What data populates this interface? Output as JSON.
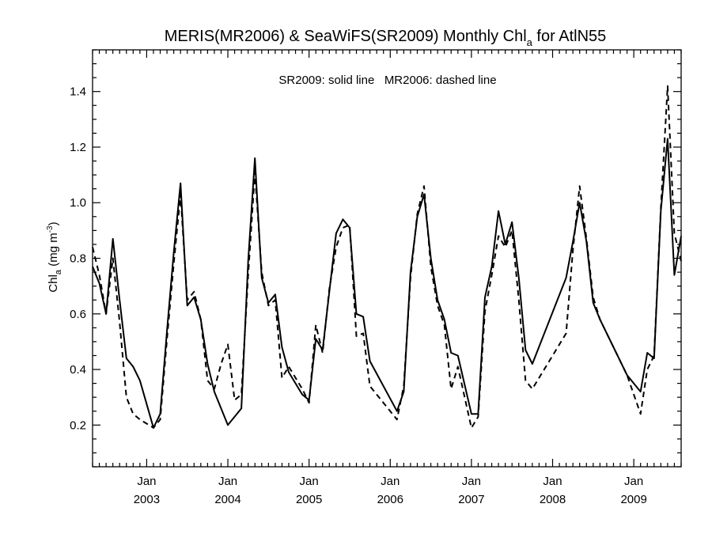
{
  "chart_data": {
    "type": "line",
    "title": "MERIS(MR2006) & SeaWiFS(SR2009) Monthly Chl",
    "title_subscript": "a",
    "title_suffix": " for AtlN55",
    "annotation": "SR2009: solid line   MR2006: dashed line",
    "ylabel": "Chl",
    "ylabel_subscript": "a",
    "ylabel_units": " (mg m",
    "ylabel_units_sup": "-3",
    "ylabel_units_close": ")",
    "ylim": [
      0.05,
      1.55
    ],
    "xlim": [
      "2002-05-01",
      "2009-08-01"
    ],
    "y_ticks": [
      0.2,
      0.4,
      0.6,
      0.8,
      1.0,
      1.2,
      1.4
    ],
    "y_tick_labels": [
      "0.2",
      "0.4",
      "0.6",
      "0.8",
      "1.0",
      "1.2",
      "1.4"
    ],
    "x_ticks": [
      "2003-01-01",
      "2004-01-01",
      "2005-01-01",
      "2006-01-01",
      "2007-01-01",
      "2008-01-01",
      "2009-01-01"
    ],
    "x_tick_month_label": "Jan",
    "x_tick_year_labels": [
      "2003",
      "2004",
      "2005",
      "2006",
      "2007",
      "2008",
      "2009"
    ],
    "grid": false,
    "legend": "none",
    "series": [
      {
        "name": "SR2009",
        "style": "solid",
        "color": "#000000",
        "points": [
          [
            "2002-05-01",
            0.77
          ],
          [
            "2002-06-01",
            0.71
          ],
          [
            "2002-07-01",
            0.6
          ],
          [
            "2002-08-01",
            0.87
          ],
          [
            "2002-09-01",
            0.65
          ],
          [
            "2002-10-01",
            0.44
          ],
          [
            "2002-11-01",
            0.41
          ],
          [
            "2002-12-01",
            0.36
          ],
          [
            "2003-02-01",
            0.19
          ],
          [
            "2003-03-01",
            0.24
          ],
          [
            "2003-04-01",
            0.54
          ],
          [
            "2003-05-01",
            0.82
          ],
          [
            "2003-06-01",
            1.07
          ],
          [
            "2003-07-01",
            0.63
          ],
          [
            "2003-08-01",
            0.66
          ],
          [
            "2003-09-01",
            0.58
          ],
          [
            "2003-10-01",
            0.42
          ],
          [
            "2003-11-01",
            0.32
          ],
          [
            "2004-01-01",
            0.2
          ],
          [
            "2004-03-01",
            0.26
          ],
          [
            "2004-04-01",
            0.79
          ],
          [
            "2004-05-01",
            1.16
          ],
          [
            "2004-06-01",
            0.73
          ],
          [
            "2004-07-01",
            0.64
          ],
          [
            "2004-08-01",
            0.67
          ],
          [
            "2004-09-01",
            0.48
          ],
          [
            "2004-10-01",
            0.39
          ],
          [
            "2004-12-01",
            0.31
          ],
          [
            "2005-01-01",
            0.29
          ],
          [
            "2005-02-01",
            0.51
          ],
          [
            "2005-03-01",
            0.47
          ],
          [
            "2005-04-01",
            0.68
          ],
          [
            "2005-05-01",
            0.89
          ],
          [
            "2005-06-01",
            0.94
          ],
          [
            "2005-07-01",
            0.91
          ],
          [
            "2005-08-01",
            0.6
          ],
          [
            "2005-09-01",
            0.59
          ],
          [
            "2005-10-01",
            0.43
          ],
          [
            "2006-02-01",
            0.25
          ],
          [
            "2006-03-01",
            0.32
          ],
          [
            "2006-04-01",
            0.75
          ],
          [
            "2006-05-01",
            0.95
          ],
          [
            "2006-06-01",
            1.03
          ],
          [
            "2006-07-01",
            0.8
          ],
          [
            "2006-08-01",
            0.65
          ],
          [
            "2006-09-01",
            0.58
          ],
          [
            "2006-10-01",
            0.46
          ],
          [
            "2006-11-01",
            0.45
          ],
          [
            "2007-01-01",
            0.24
          ],
          [
            "2007-02-01",
            0.24
          ],
          [
            "2007-03-01",
            0.66
          ],
          [
            "2007-04-01",
            0.77
          ],
          [
            "2007-05-01",
            0.97
          ],
          [
            "2007-06-01",
            0.85
          ],
          [
            "2007-07-01",
            0.93
          ],
          [
            "2007-08-01",
            0.73
          ],
          [
            "2007-09-01",
            0.47
          ],
          [
            "2007-10-01",
            0.42
          ],
          [
            "2008-03-01",
            0.73
          ],
          [
            "2008-04-01",
            0.86
          ],
          [
            "2008-05-01",
            1.0
          ],
          [
            "2008-06-01",
            0.86
          ],
          [
            "2008-07-01",
            0.64
          ],
          [
            "2008-08-01",
            0.58
          ],
          [
            "2008-12-01",
            0.38
          ],
          [
            "2009-02-01",
            0.32
          ],
          [
            "2009-03-01",
            0.46
          ],
          [
            "2009-04-01",
            0.44
          ],
          [
            "2009-05-01",
            0.97
          ],
          [
            "2009-06-01",
            1.23
          ],
          [
            "2009-07-01",
            0.74
          ],
          [
            "2009-08-01",
            0.88
          ]
        ]
      },
      {
        "name": "MR2006",
        "style": "dashed",
        "color": "#000000",
        "points": [
          [
            "2002-05-01",
            0.84
          ],
          [
            "2002-06-01",
            0.74
          ],
          [
            "2002-07-01",
            0.6
          ],
          [
            "2002-08-01",
            0.8
          ],
          [
            "2002-09-01",
            0.57
          ],
          [
            "2002-10-01",
            0.3
          ],
          [
            "2002-11-01",
            0.24
          ],
          [
            "2002-12-01",
            0.22
          ],
          [
            "2003-02-01",
            0.19
          ],
          [
            "2003-03-01",
            0.22
          ],
          [
            "2003-04-01",
            0.51
          ],
          [
            "2003-05-01",
            0.78
          ],
          [
            "2003-06-01",
            1.03
          ],
          [
            "2003-07-01",
            0.65
          ],
          [
            "2003-08-01",
            0.68
          ],
          [
            "2003-09-01",
            0.58
          ],
          [
            "2003-10-01",
            0.36
          ],
          [
            "2003-11-01",
            0.33
          ],
          [
            "2003-12-01",
            0.42
          ],
          [
            "2004-01-01",
            0.49
          ],
          [
            "2004-02-01",
            0.29
          ],
          [
            "2004-03-01",
            0.31
          ],
          [
            "2004-04-01",
            0.74
          ],
          [
            "2004-05-01",
            1.11
          ],
          [
            "2004-06-01",
            0.75
          ],
          [
            "2004-07-01",
            0.63
          ],
          [
            "2004-08-01",
            0.65
          ],
          [
            "2004-09-01",
            0.37
          ],
          [
            "2004-10-01",
            0.41
          ],
          [
            "2004-12-01",
            0.33
          ],
          [
            "2005-01-01",
            0.28
          ],
          [
            "2005-02-01",
            0.56
          ],
          [
            "2005-03-01",
            0.46
          ],
          [
            "2005-04-01",
            0.69
          ],
          [
            "2005-05-01",
            0.84
          ],
          [
            "2005-06-01",
            0.91
          ],
          [
            "2005-07-01",
            0.92
          ],
          [
            "2005-08-01",
            0.52
          ],
          [
            "2005-09-01",
            0.53
          ],
          [
            "2005-10-01",
            0.34
          ],
          [
            "2006-02-01",
            0.22
          ],
          [
            "2006-03-01",
            0.34
          ],
          [
            "2006-04-01",
            0.73
          ],
          [
            "2006-05-01",
            0.96
          ],
          [
            "2006-06-01",
            1.06
          ],
          [
            "2006-07-01",
            0.77
          ],
          [
            "2006-08-01",
            0.63
          ],
          [
            "2006-09-01",
            0.56
          ],
          [
            "2006-10-01",
            0.33
          ],
          [
            "2006-11-01",
            0.41
          ],
          [
            "2007-01-01",
            0.19
          ],
          [
            "2007-02-01",
            0.23
          ],
          [
            "2007-03-01",
            0.61
          ],
          [
            "2007-04-01",
            0.74
          ],
          [
            "2007-05-01",
            0.88
          ],
          [
            "2007-06-01",
            0.84
          ],
          [
            "2007-07-01",
            0.9
          ],
          [
            "2007-08-01",
            0.65
          ],
          [
            "2007-09-01",
            0.36
          ],
          [
            "2007-10-01",
            0.33
          ],
          [
            "2008-03-01",
            0.53
          ],
          [
            "2008-04-01",
            0.83
          ],
          [
            "2008-05-01",
            1.06
          ],
          [
            "2008-06-01",
            0.87
          ],
          [
            "2008-07-01",
            0.66
          ],
          [
            "2008-08-01",
            0.58
          ],
          [
            "2008-12-01",
            0.38
          ],
          [
            "2009-02-01",
            0.24
          ],
          [
            "2009-03-01",
            0.4
          ],
          [
            "2009-04-01",
            0.45
          ],
          [
            "2009-05-01",
            0.98
          ],
          [
            "2009-06-01",
            1.42
          ],
          [
            "2009-07-01",
            0.89
          ],
          [
            "2009-08-01",
            0.79
          ]
        ]
      }
    ]
  }
}
